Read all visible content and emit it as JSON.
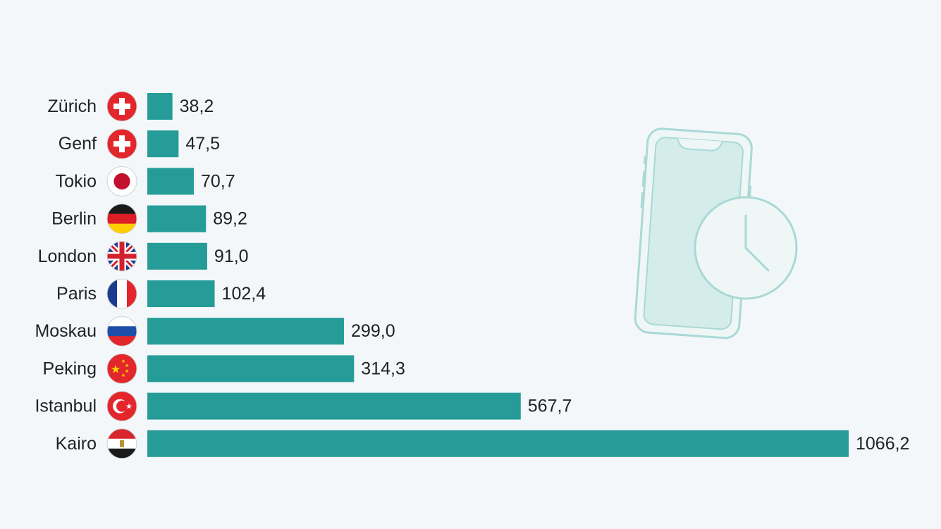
{
  "chart_data": {
    "type": "bar",
    "orientation": "horizontal",
    "categories": [
      "Zürich",
      "Genf",
      "Tokio",
      "Berlin",
      "London",
      "Paris",
      "Moskau",
      "Peking",
      "Istanbul",
      "Kairo"
    ],
    "values": [
      38.2,
      47.5,
      70.7,
      89.2,
      91.0,
      102.4,
      299.0,
      314.3,
      567.7,
      1066.2
    ],
    "value_labels": [
      "38,2",
      "47,5",
      "70,7",
      "89,2",
      "91,0",
      "102,4",
      "299,0",
      "314,3",
      "567,7",
      "1066,2"
    ],
    "flags": [
      "switzerland-flag",
      "switzerland-flag",
      "japan-flag",
      "germany-flag",
      "uk-flag",
      "france-flag",
      "russia-flag",
      "china-flag",
      "turkey-flag",
      "egypt-flag"
    ],
    "title": "",
    "xlabel": "",
    "ylabel": "",
    "xlim": [
      0,
      1066.2
    ],
    "grid": false,
    "legend": "none"
  },
  "colors": {
    "bar": "#259c98",
    "background": "#f4f7fa",
    "illustration": "#a9d9d6",
    "illustration_fill": "#d4ecea"
  },
  "illustration": {
    "icons": [
      "smartphone-icon",
      "clock-icon"
    ]
  }
}
